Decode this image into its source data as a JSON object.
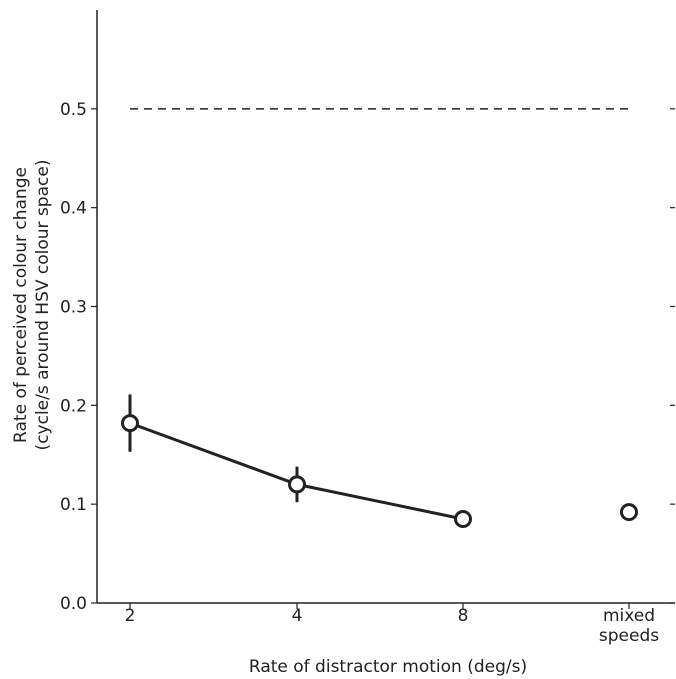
{
  "chart_data": {
    "type": "line",
    "xlabel": "Rate of distractor motion (deg/s)",
    "ylabel_lines": [
      "Rate of perceived colour change",
      "(cycle/s around HSV colour space)"
    ],
    "categories": [
      {
        "lines": [
          "2"
        ]
      },
      {
        "lines": [
          "4"
        ]
      },
      {
        "lines": [
          "8"
        ]
      },
      {
        "lines": [
          "mixed",
          "speeds"
        ]
      }
    ],
    "ylim": [
      0.0,
      0.6
    ],
    "yticks": [
      "0.0",
      "0.1",
      "0.2",
      "0.3",
      "0.4",
      "0.5"
    ],
    "reference_line": {
      "y": 0.5,
      "style": "dashed",
      "x_start_category": 0,
      "x_end_category": 3
    },
    "series": [
      {
        "values": [
          0.182,
          0.12,
          0.085,
          null
        ],
        "error": [
          0.029,
          0.018,
          0.0,
          null
        ],
        "connected": true,
        "marker": "open-circle"
      },
      {
        "values": [
          null,
          null,
          null,
          0.092
        ],
        "error": [
          null,
          null,
          null,
          0.0
        ],
        "connected": false,
        "marker": "open-circle"
      }
    ],
    "grid": false,
    "colors": {
      "line": "#222222",
      "marker_fill": "#ffffff"
    }
  }
}
